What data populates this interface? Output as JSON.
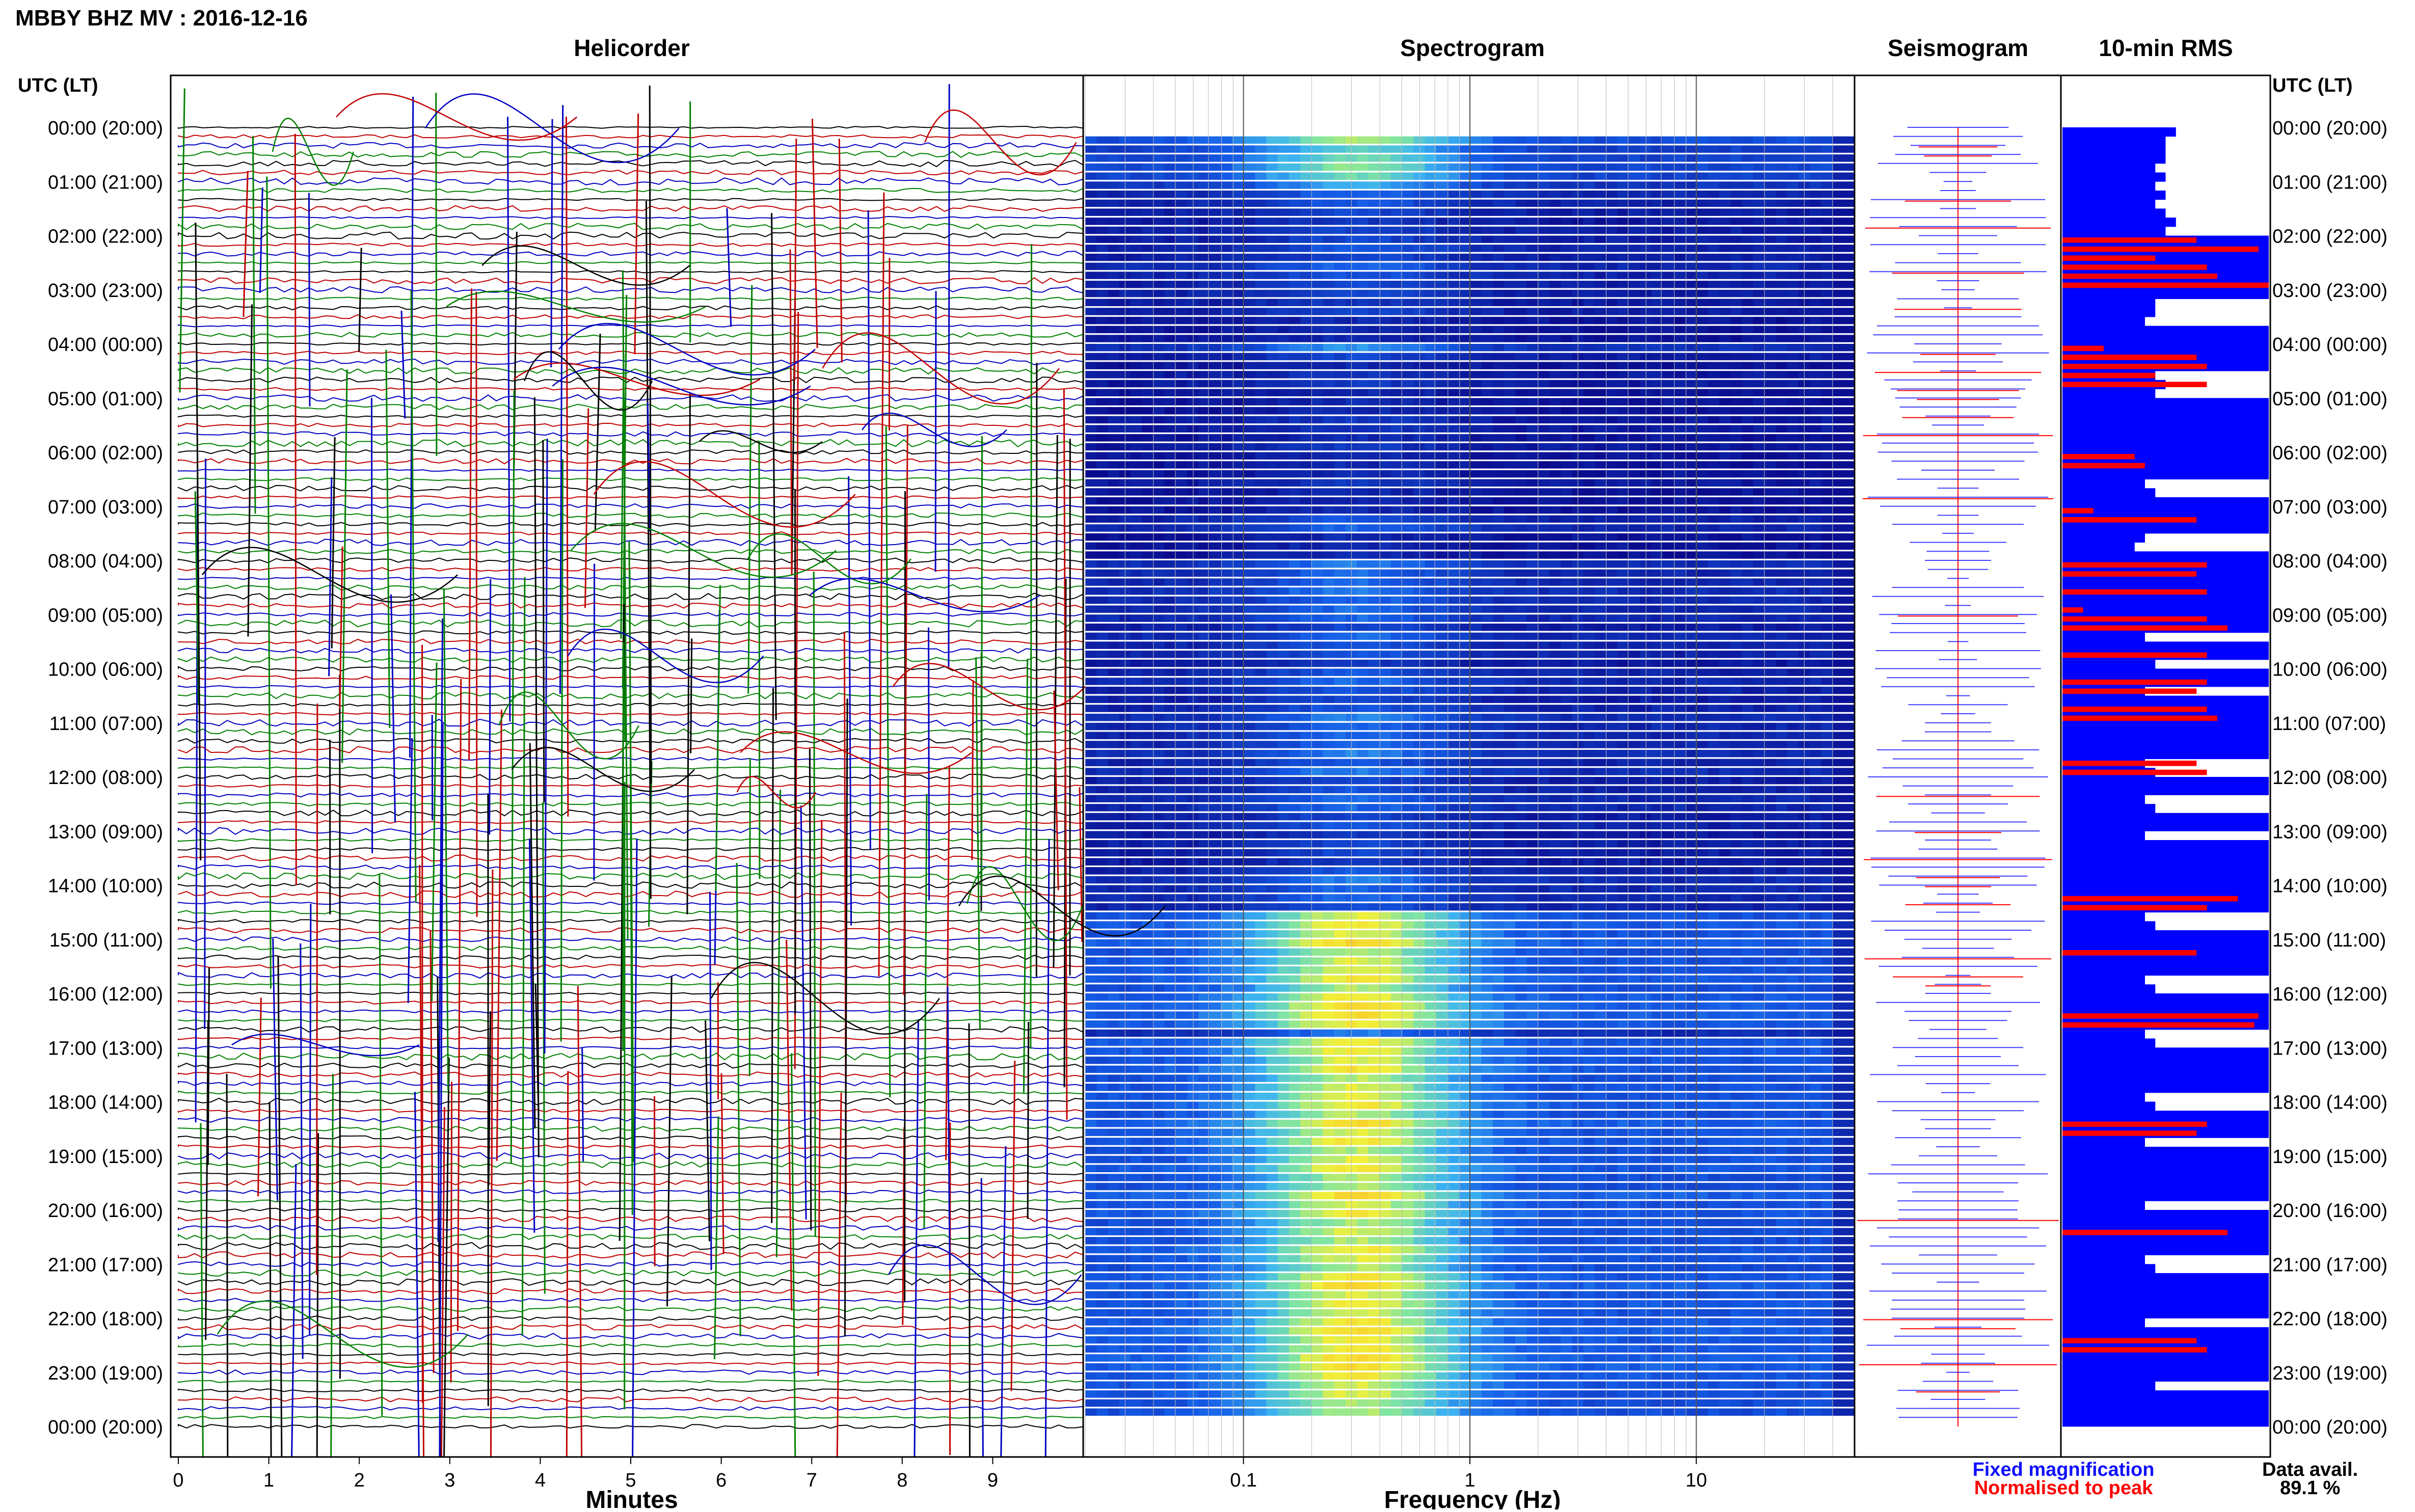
{
  "chart_data": {
    "type": "heatmap",
    "title": "MBBY BHZ MV : 2016-12-16",
    "panels": {
      "helicorder": "Helicorder",
      "spectrogram": "Spectrogram",
      "seismogram": "Seismogram",
      "rms": "10-min RMS"
    },
    "time_axis_title": "UTC (LT)",
    "time_labels": [
      "00:00 (20:00)",
      "01:00 (21:00)",
      "02:00 (22:00)",
      "03:00 (23:00)",
      "04:00 (00:00)",
      "05:00 (01:00)",
      "06:00 (02:00)",
      "07:00 (03:00)",
      "08:00 (04:00)",
      "09:00 (05:00)",
      "10:00 (06:00)",
      "11:00 (07:00)",
      "12:00 (08:00)",
      "13:00 (09:00)",
      "14:00 (10:00)",
      "15:00 (11:00)",
      "16:00 (12:00)",
      "17:00 (13:00)",
      "18:00 (14:00)",
      "19:00 (15:00)",
      "20:00 (16:00)",
      "21:00 (17:00)",
      "22:00 (18:00)",
      "23:00 (19:00)",
      "00:00 (20:00)"
    ],
    "helicorder_x": {
      "label": "Minutes",
      "ticks": [
        "0",
        "1",
        "2",
        "3",
        "4",
        "5",
        "6",
        "7",
        "8",
        "9"
      ],
      "range": [
        0,
        10
      ]
    },
    "spectrogram_x": {
      "label": "Frequency (Hz)",
      "scale": "log",
      "ticks": [
        "0.1",
        "1",
        "10"
      ],
      "range": [
        0.02,
        50
      ]
    },
    "spectrogram_rows": [
      0,
      0.7,
      0.55,
      0.6,
      0.65,
      0.6,
      0.45,
      0.3,
      0.25,
      0.2,
      0.15,
      0.2,
      0.2,
      0.25,
      0.2,
      0.3,
      0.25,
      0.2,
      0.2,
      0.15,
      0.2,
      0.1,
      0.1,
      0.1,
      0.4,
      0.2,
      0.1,
      0.15,
      0.15,
      0.1,
      0.1,
      0.1,
      0.15,
      0.15,
      0.1,
      0.15,
      0.1,
      0.1,
      0.1,
      0.15,
      0.1,
      0.1,
      0.1,
      0.25,
      0.3,
      0.1,
      0.1,
      0.1,
      0.35,
      0.3,
      0.3,
      0.35,
      0.3,
      0.3,
      0.3,
      0.2,
      0.3,
      0.25,
      0.25,
      0.15,
      0.25,
      0.3,
      0.25,
      0.2,
      0.25,
      0.35,
      0.3,
      0.3,
      0.3,
      0.35,
      0.25,
      0.35,
      0.2,
      0.25,
      0.3,
      0.3,
      0.2,
      0.25,
      0.15,
      0.2,
      0.2,
      0.15,
      0.25,
      0.35,
      0.3,
      0.3,
      0.25,
      0.75,
      0.8,
      0.75,
      0.85,
      0.7,
      0.75,
      0.75,
      0.8,
      0.7,
      0.8,
      0.85,
      0.85,
      0.8,
      0.35,
      0.8,
      0.8,
      0.75,
      0.8,
      0.7,
      0.75,
      0.75,
      0.8,
      0.7,
      0.85,
      0.75,
      0.8,
      0.7,
      0.75,
      0.8,
      0.7,
      0.7,
      0.85,
      0.75,
      0.8,
      0.7,
      0.75,
      0.7,
      0.8,
      0.75,
      0.7,
      0.8,
      0.85,
      0.75,
      0.8,
      0.75,
      0.8,
      0.85,
      0.8,
      0.8,
      0.85,
      0.85,
      0.8,
      0.75,
      0.75,
      0.7,
      0.7,
      0
    ],
    "rms_blue": [
      0.55,
      0.5,
      0.5,
      0.5,
      0.45,
      0.5,
      0.45,
      0.5,
      0.45,
      0.5,
      0.55,
      0.5,
      1.0,
      1.0,
      1.0,
      1.0,
      1.0,
      1.0,
      1.0,
      0.45,
      0.45,
      0.4,
      1.0,
      1.0,
      1.0,
      1.0,
      1.0,
      0.45,
      0.5,
      0.45,
      1.0,
      1.0,
      1.0,
      1.0,
      1.0,
      1.0,
      1.0,
      1.0,
      1.0,
      0.4,
      0.45,
      1.0,
      1.0,
      1.0,
      1.0,
      0.4,
      0.35,
      1.0,
      1.0,
      1.0,
      1.0,
      1.0,
      1.0,
      1.0,
      1.0,
      1.0,
      0.4,
      1.0,
      1.0,
      0.45,
      1.0,
      1.0,
      0.4,
      1.0,
      1.0,
      1.0,
      1.0,
      1.0,
      1.0,
      1.0,
      0.4,
      0.45,
      1.0,
      1.0,
      0.4,
      0.45,
      1.0,
      1.0,
      0.4,
      1.0,
      1.0,
      1.0,
      1.0,
      1.0,
      1.0,
      1.0,
      1.0,
      0.4,
      0.45,
      1.0,
      1.0,
      1.0,
      1.0,
      1.0,
      0.4,
      0.45,
      1.0,
      1.0,
      1.0,
      1.0,
      0.4,
      0.45,
      1.0,
      1.0,
      1.0,
      1.0,
      1.0,
      0.4,
      0.45,
      1.0,
      1.0,
      1.0,
      0.4,
      1.0,
      1.0,
      1.0,
      1.0,
      1.0,
      1.0,
      0.4,
      1.0,
      1.0,
      1.0,
      1.0,
      1.0,
      0.4,
      0.45,
      1.0,
      1.0,
      1.0,
      1.0,
      1.0,
      0.4,
      1.0,
      1.0,
      1.0,
      1.0,
      1.0,
      1.0,
      0.45,
      1.0,
      1.0,
      1.0,
      1.0
    ],
    "rms_red": [
      0,
      0,
      0,
      0,
      0,
      0,
      0,
      0,
      0,
      0,
      0,
      0,
      0.65,
      0.95,
      0.45,
      0.7,
      0.75,
      1.0,
      0,
      0,
      0,
      0,
      0,
      0,
      0.2,
      0.65,
      0.7,
      0.45,
      0.7,
      0,
      0,
      0,
      0,
      0,
      0,
      0,
      0.35,
      0.4,
      0,
      0,
      0,
      0,
      0.15,
      0.65,
      0,
      0,
      0,
      0,
      0.7,
      0.65,
      0,
      0.7,
      0,
      0.1,
      0.7,
      0.8,
      0,
      0,
      0.7,
      0,
      0,
      0.7,
      0.65,
      0,
      0.7,
      0.75,
      0,
      0,
      0,
      0,
      0.65,
      0.7,
      0,
      0,
      0,
      0,
      0,
      0,
      0,
      0,
      0,
      0,
      0,
      0,
      0,
      0.85,
      0.7,
      0,
      0,
      0,
      0,
      0.65,
      0,
      0,
      0,
      0,
      0,
      0,
      0.95,
      0.93,
      0,
      0,
      0,
      0,
      0,
      0,
      0,
      0,
      0,
      0,
      0.7,
      0.65,
      0,
      0,
      0,
      0,
      0,
      0,
      0,
      0,
      0,
      0,
      0.8,
      0,
      0,
      0,
      0,
      0,
      0,
      0,
      0,
      0,
      0,
      0,
      0.65,
      0.7,
      0,
      0,
      0,
      0,
      0,
      0,
      0,
      0
    ],
    "legend": [
      "Fixed magnification",
      "Normalised to peak"
    ],
    "data_avail_label": "Data avail.",
    "data_avail_value": "89.1 %",
    "colors": {
      "helicorder_traces": [
        "#000000",
        "#c00000",
        "#0000c0",
        "#008000"
      ],
      "fixed_magnification": "#1010ff",
      "normalised_to_peak": "#ff0000",
      "rms_bar": "#0000ff",
      "spectrogram_background": "#0a0a8c"
    }
  }
}
